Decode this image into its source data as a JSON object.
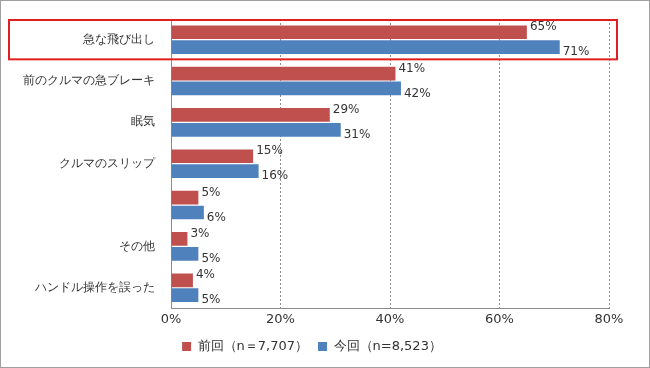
{
  "chart_data": {
    "type": "bar",
    "orientation": "horizontal",
    "categories": [
      "急な飛び出し",
      "前のクルマの急ブレーキ",
      "眠気",
      "クルマのスリップ",
      null,
      "その他",
      "ハンドル操作を誤った"
    ],
    "series": [
      {
        "name": "前回（n＝7,707）",
        "color": "#c0504d",
        "values": [
          65,
          41,
          29,
          15,
          5,
          3,
          4
        ],
        "value_labels": [
          "65%",
          "41%",
          "29%",
          "15%",
          "5%",
          "3%",
          "4%"
        ]
      },
      {
        "name": "今回（n=8,523）",
        "color": "#4f81bd",
        "values": [
          71,
          42,
          31,
          16,
          6,
          5,
          5
        ],
        "value_labels": [
          "71%",
          "42%",
          "31%",
          "16%",
          "6%",
          "5%",
          "5%"
        ]
      }
    ],
    "xlim": [
      0,
      80
    ],
    "xticks": [
      {
        "value": 0,
        "label": "0%"
      },
      {
        "value": 20,
        "label": "20%"
      },
      {
        "value": 40,
        "label": "40%"
      },
      {
        "value": 60,
        "label": "60%"
      },
      {
        "value": 80,
        "label": "80%"
      }
    ],
    "grid": true,
    "legend": "bottom",
    "data_labels": true
  }
}
